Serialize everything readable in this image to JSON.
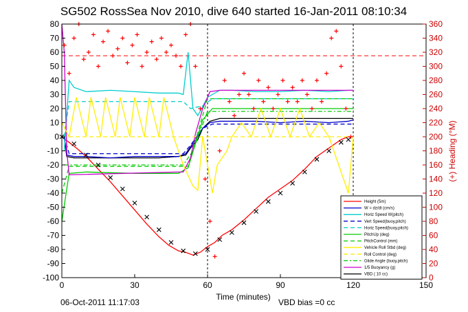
{
  "chart_data": {
    "type": "line",
    "title": "SG502 RossSea Nov 2010, dive 640 started 16-Jan-2011 08:10:34",
    "xlabel": "Time (minutes)",
    "ylabel_right": "(+) Heading (°M)",
    "xlim": [
      0,
      150
    ],
    "ylim": [
      -100,
      80
    ],
    "ylim_right": [
      0,
      360
    ],
    "x_ticks": [
      "0",
      "30",
      "60",
      "90",
      "120",
      "150"
    ],
    "y_ticks": [
      "80",
      "70",
      "60",
      "50",
      "40",
      "30",
      "20",
      "10",
      "0",
      "-10",
      "-20",
      "-30",
      "-40",
      "-50",
      "-60",
      "-70",
      "-80",
      "-90",
      "-100"
    ],
    "y_ticks_right": [
      "360",
      "340",
      "320",
      "300",
      "280",
      "260",
      "240",
      "220",
      "200",
      "180",
      "160",
      "140",
      "120",
      "100",
      "80",
      "60",
      "40",
      "20",
      "0"
    ],
    "grid": "dashed at x=60 and x=120",
    "legend_position": "bottom-right",
    "legend": [
      {
        "label": "Height (5m)",
        "color": "#ff0000",
        "style": "solid"
      },
      {
        "label": "W = dz/dt (cm/s)",
        "color": "#0000cc",
        "style": "solid"
      },
      {
        "label": "Horiz Speed W(pitch)",
        "color": "#00cccc",
        "style": "solid"
      },
      {
        "label": "Vert Speed(buoy,pitch)",
        "color": "#0000cc",
        "style": "dashed"
      },
      {
        "label": "Horiz Speed(buoy,pitch)",
        "color": "#00cccc",
        "style": "dashed"
      },
      {
        "label": "PitchUp (deg)",
        "color": "#00cc00",
        "style": "solid"
      },
      {
        "label": "PitchControl (mm)",
        "color": "#00cc00",
        "style": "dashed"
      },
      {
        "label": "Vehicle Roll Stbd (deg)",
        "color": "#ffee00",
        "style": "solid"
      },
      {
        "label": "Roll Control (deg)",
        "color": "#ffee00",
        "style": "dashed"
      },
      {
        "label": "Glide Angle (buoy,pitch)",
        "color": "#00cc00",
        "style": "dashdot"
      },
      {
        "label": "1/5 Buoyancy (g)",
        "color": "#cc00cc",
        "style": "solid"
      },
      {
        "label": "VBD ( 10 cc)",
        "color": "#000000",
        "style": "solid"
      }
    ],
    "series": [
      {
        "name": "Height (5m)",
        "color": "#ff0000",
        "x": [
          0,
          3,
          6,
          10,
          15,
          20,
          25,
          30,
          35,
          40,
          44,
          48,
          51,
          54,
          57,
          60,
          63,
          66,
          70,
          75,
          80,
          85,
          90,
          95,
          100,
          105,
          110,
          115,
          118,
          120
        ],
        "values": [
          0,
          -4,
          -8,
          -14,
          -23,
          -32,
          -42,
          -52,
          -62,
          -71,
          -77,
          -81,
          -82,
          -84,
          -82,
          -78,
          -75,
          -70,
          -66,
          -59,
          -51,
          -43,
          -37,
          -31,
          -23,
          -14,
          -8,
          -2,
          0,
          0
        ]
      },
      {
        "name": "VBD ( 10 cc)",
        "color": "#000000",
        "x": [
          1,
          2,
          5,
          10,
          20,
          30,
          40,
          48,
          51,
          53,
          56,
          58,
          61,
          65,
          70,
          80,
          90,
          100,
          110,
          118,
          120
        ],
        "values": [
          0,
          -14,
          -15,
          -15,
          -15,
          -15,
          -15,
          -14,
          -13,
          -8,
          -2,
          6,
          11,
          13,
          13,
          13,
          13,
          13,
          13,
          13,
          13
        ]
      },
      {
        "name": "W = dz/dt (cm/s)",
        "color": "#0000cc",
        "x": [
          1,
          2,
          5,
          10,
          20,
          30,
          40,
          48,
          51,
          53,
          56,
          58,
          61,
          65,
          70,
          80,
          90,
          100,
          110,
          118,
          120
        ],
        "values": [
          0,
          -13,
          -14,
          -14,
          -15,
          -14,
          -14,
          -14,
          -12,
          -7,
          0,
          6,
          10,
          11,
          11,
          11,
          10,
          11,
          10,
          11,
          12
        ]
      },
      {
        "name": "Vert Speed(buoy,pitch)",
        "color": "#0000cc",
        "x": [
          1,
          3,
          50,
          53,
          58,
          62,
          120
        ],
        "values": [
          0,
          -12,
          -12,
          -6,
          6,
          9,
          9
        ]
      },
      {
        "name": "Horiz Speed W(pitch)",
        "color": "#00cccc",
        "x": [
          1,
          3,
          5,
          10,
          20,
          30,
          40,
          48,
          50,
          52,
          54,
          56,
          60,
          65,
          70,
          80,
          90,
          100,
          110,
          118,
          120
        ],
        "values": [
          -10,
          40,
          35,
          32,
          33,
          32,
          31,
          31,
          30,
          60,
          20,
          15,
          28,
          33,
          33,
          32,
          32,
          33,
          32,
          33,
          33
        ]
      },
      {
        "name": "Horiz Speed(buoy,pitch)",
        "color": "#00cccc",
        "x": [
          1,
          3,
          50,
          53,
          58,
          62,
          120
        ],
        "values": [
          0,
          25,
          25,
          20,
          22,
          27,
          27
        ]
      },
      {
        "name": "PitchUp (deg)",
        "color": "#00cc00",
        "x": [
          0,
          3,
          10,
          30,
          48,
          52,
          58,
          62,
          90,
          120
        ],
        "values": [
          -60,
          -26,
          -25,
          -26,
          -26,
          -22,
          12,
          20,
          20,
          20
        ]
      },
      {
        "name": "PitchControl (mm)",
        "color": "#00cc00",
        "x": [
          0,
          3,
          50,
          52,
          60,
          120
        ],
        "values": [
          -40,
          -21,
          -21,
          -21,
          27,
          27
        ]
      },
      {
        "name": "Glide Angle (buoy,pitch)",
        "color": "#00cc00",
        "x": [
          1,
          3,
          50,
          54,
          60,
          120
        ],
        "values": [
          -20,
          -20,
          -20,
          -10,
          18,
          18
        ]
      },
      {
        "name": "1/5 Buoyancy (g)",
        "color": "#cc00cc",
        "x": [
          0,
          1,
          2,
          3,
          48,
          50,
          53,
          55,
          58,
          61,
          65,
          70,
          120
        ],
        "values": [
          80,
          60,
          -10,
          -27,
          -25,
          -25,
          -15,
          2,
          20,
          32,
          33,
          33,
          33
        ]
      },
      {
        "name": "Vehicle Roll Stbd (deg)",
        "color": "#ffee00",
        "x": [
          0,
          3,
          6,
          10,
          12,
          16,
          18,
          22,
          24,
          28,
          30,
          34,
          36,
          40,
          42,
          46,
          50,
          54,
          56,
          58,
          62,
          64,
          68,
          70,
          74,
          78,
          82,
          86,
          90,
          94,
          98,
          102,
          106,
          110,
          114,
          118,
          120
        ],
        "values": [
          10,
          0,
          28,
          0,
          28,
          0,
          28,
          0,
          28,
          0,
          28,
          0,
          28,
          0,
          28,
          0,
          -20,
          -35,
          -38,
          0,
          -40,
          -20,
          -10,
          0,
          10,
          0,
          20,
          0,
          20,
          0,
          20,
          0,
          10,
          0,
          -20,
          -40,
          0
        ]
      },
      {
        "name": "Roll Control (deg)",
        "color": "#ffee00",
        "x": [
          0,
          120
        ],
        "values": [
          0,
          0
        ]
      }
    ],
    "heading_series": {
      "name": "(+) Heading (°M)",
      "color": "#ff0000",
      "marker": "+",
      "x": [
        1,
        3,
        5,
        7,
        9,
        11,
        13,
        15,
        17,
        19,
        21,
        23,
        25,
        27,
        29,
        31,
        33,
        35,
        37,
        39,
        41,
        43,
        45,
        47,
        49,
        51,
        53,
        55,
        57,
        59,
        61,
        63,
        65,
        67,
        69,
        71,
        73,
        75,
        77,
        79,
        81,
        83,
        85,
        87,
        89,
        91,
        93,
        95,
        97,
        99,
        101,
        103,
        105,
        107,
        109,
        111,
        113,
        115,
        117,
        119
      ],
      "values": [
        330,
        290,
        340,
        360,
        310,
        320,
        345,
        300,
        335,
        350,
        315,
        325,
        340,
        305,
        330,
        345,
        300,
        320,
        335,
        310,
        340,
        320,
        330,
        315,
        300,
        345,
        360,
        300,
        240,
        140,
        80,
        30,
        180,
        280,
        250,
        230,
        260,
        290,
        260,
        240,
        280,
        250,
        270,
        240,
        260,
        280,
        250,
        270,
        250,
        280,
        260,
        240,
        280,
        250,
        290,
        340,
        350,
        300,
        240,
        200
      ]
    },
    "reference_line": {
      "y": 315,
      "axis": "right",
      "color": "#ff0000",
      "style": "dashed"
    },
    "black_markers": {
      "x": [
        0,
        5,
        10,
        15,
        20,
        25,
        30,
        35,
        40,
        45,
        50,
        55,
        60,
        65,
        70,
        75,
        80,
        85,
        90,
        95,
        100,
        105,
        110,
        115,
        118
      ],
      "values": [
        0,
        -5,
        -13,
        -20,
        -29,
        -37,
        -47,
        -57,
        -66,
        -75,
        -81,
        -83,
        -80,
        -73,
        -68,
        -61,
        -53,
        -46,
        -40,
        -33,
        -25,
        -16,
        -10,
        -4,
        -2
      ]
    }
  },
  "footer": {
    "timestamp": "06-Oct-2011 11:17:03",
    "vbd_bias": "VBD bias =0 cc"
  }
}
